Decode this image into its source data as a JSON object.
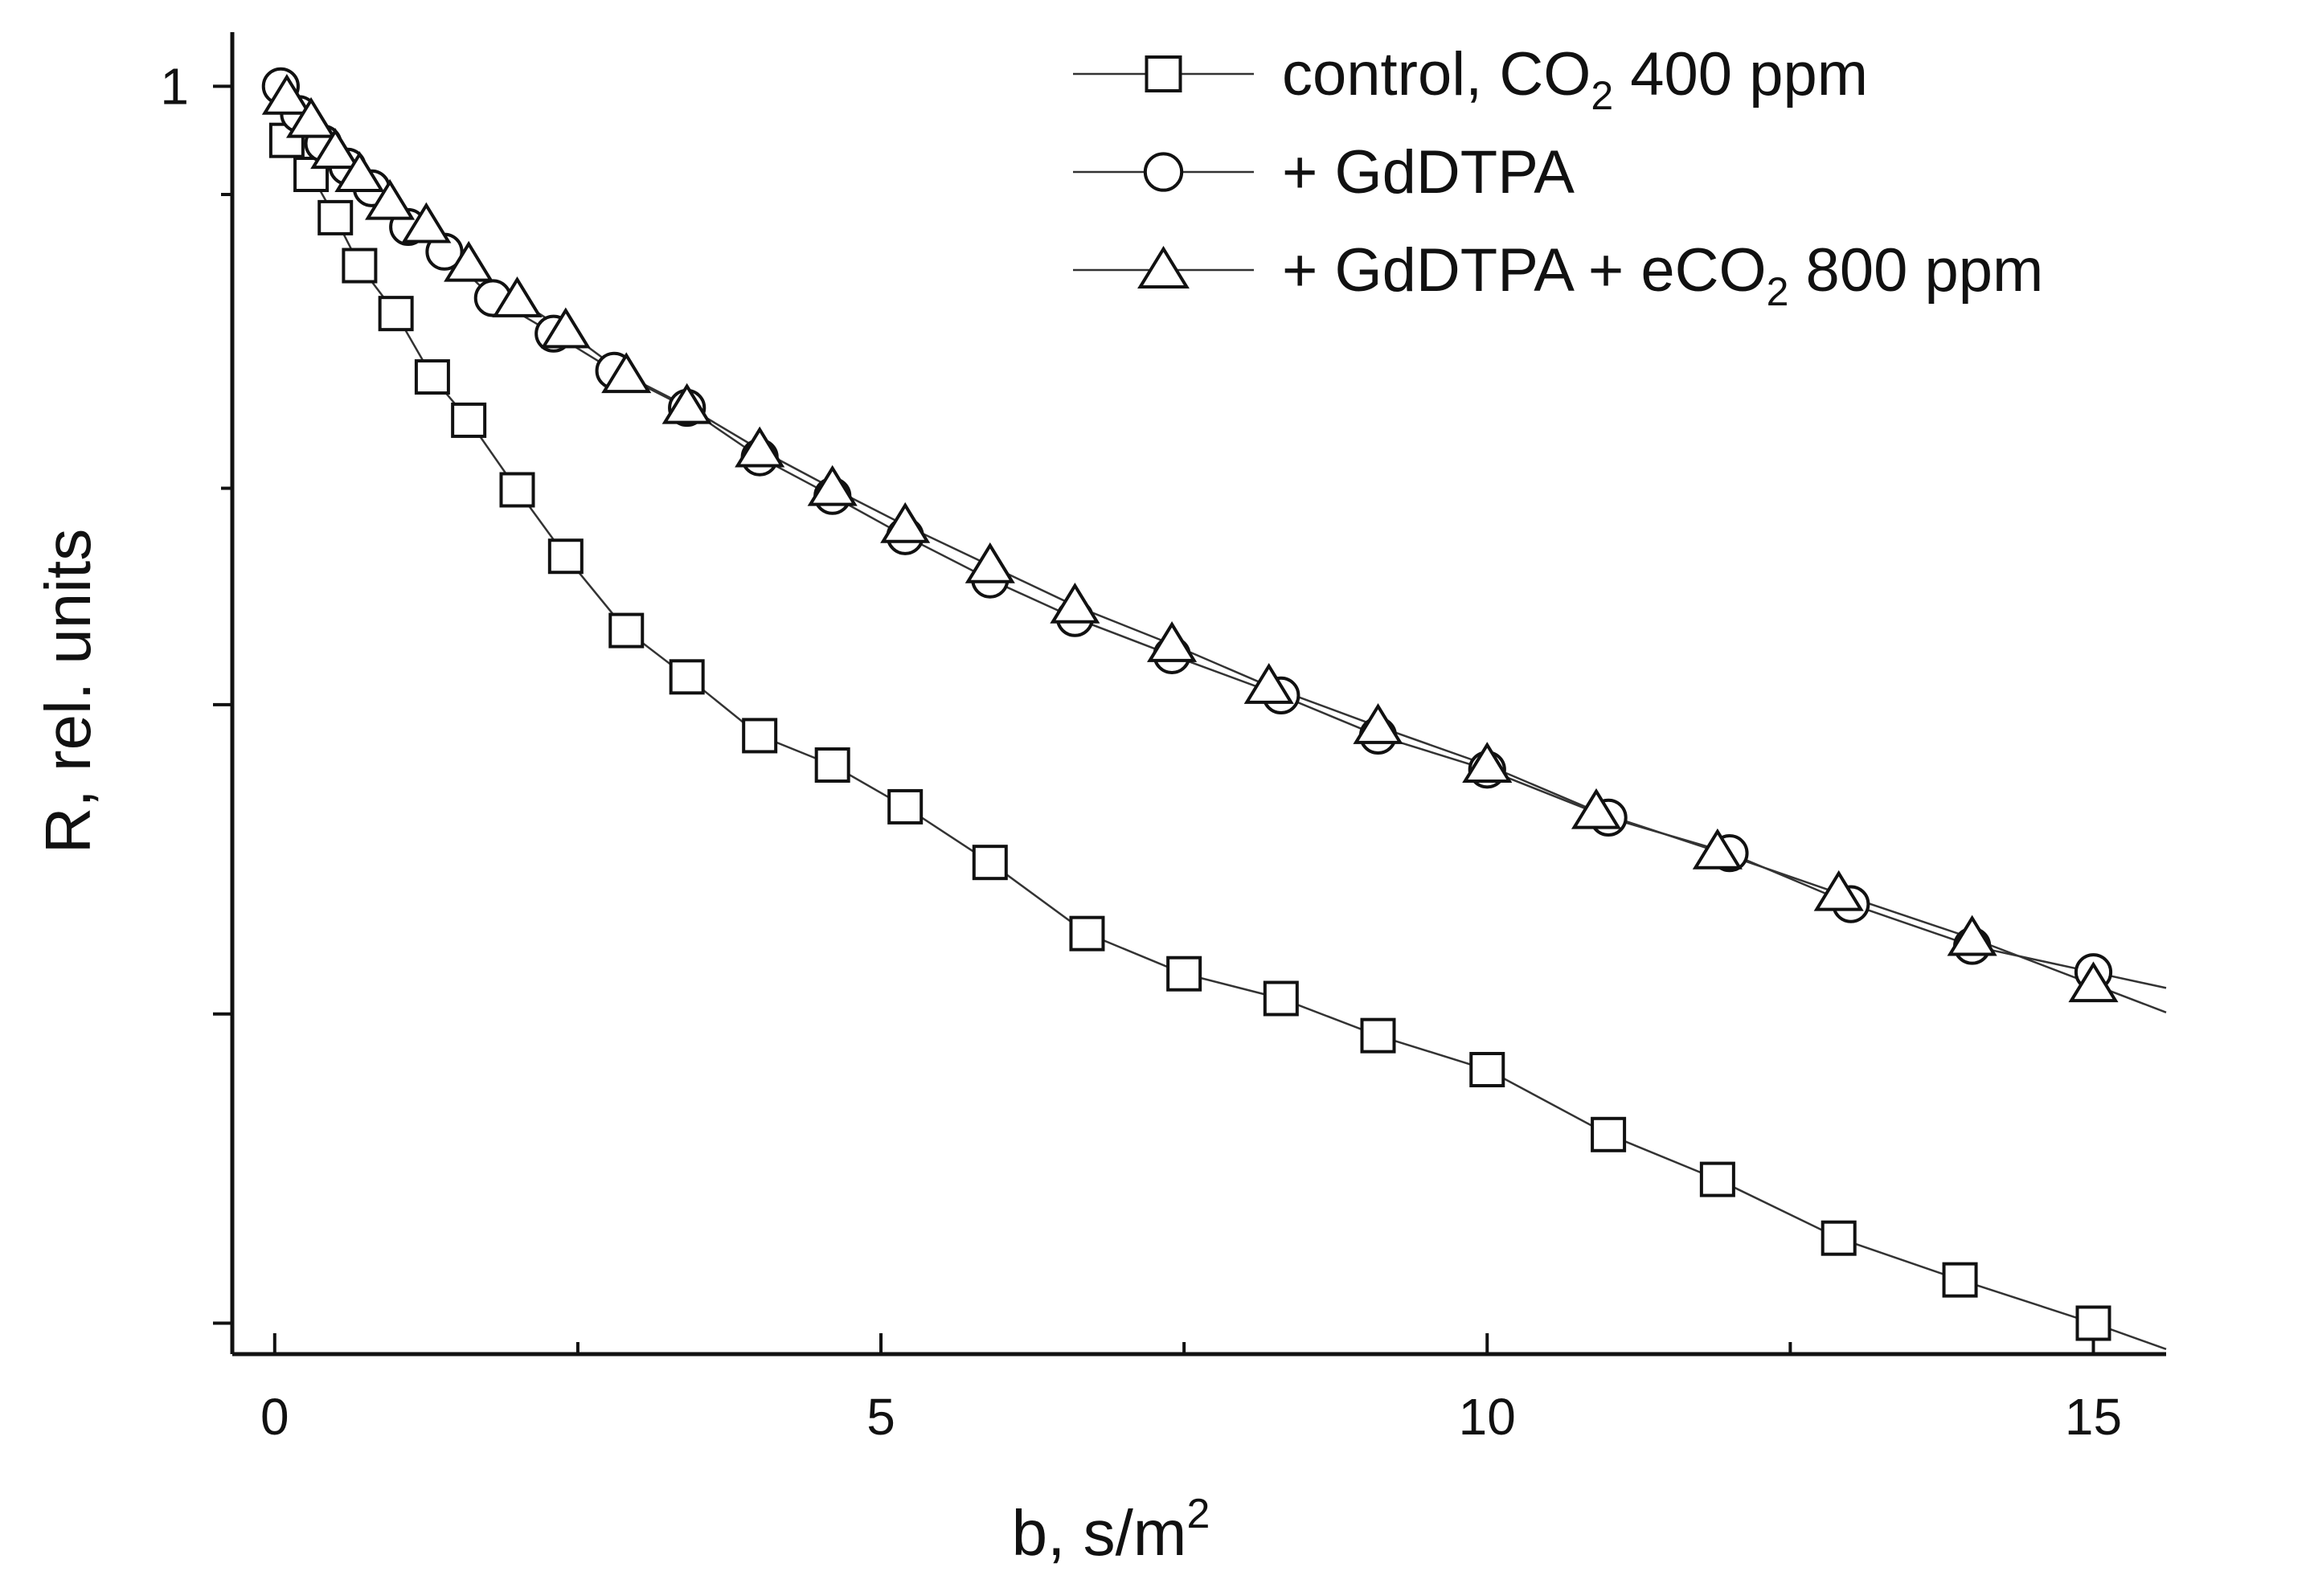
{
  "chart_data": {
    "type": "line",
    "title": "",
    "xlabel": "b, s/m",
    "xlabel_sup": "2",
    "ylabel": "R, rel. units",
    "xlim": [
      -0.35,
      15.6
    ],
    "ylim": [
      0.18,
      1.035
    ],
    "xticks": [
      0,
      5,
      10,
      15
    ],
    "xtick_labels": [
      "0",
      "5",
      "10",
      "15"
    ],
    "yticks": [
      1
    ],
    "ytick_labels": [
      "1"
    ],
    "legend_position": "top-right",
    "series": [
      {
        "name": "control, CO2 400 ppm",
        "label_parts": [
          "control, CO",
          "2",
          " 400 ppm"
        ],
        "marker": "square",
        "x": [
          0.1,
          0.3,
          0.5,
          0.7,
          1.0,
          1.3,
          1.6,
          2.0,
          2.4,
          2.9,
          3.4,
          4.0,
          4.6,
          5.2,
          5.9,
          6.7,
          7.5,
          8.3,
          9.1,
          10.0,
          11.0,
          11.9,
          12.9,
          13.9,
          15.0
        ],
        "y": [
          0.965,
          0.943,
          0.915,
          0.884,
          0.853,
          0.812,
          0.784,
          0.739,
          0.696,
          0.648,
          0.618,
          0.58,
          0.561,
          0.534,
          0.498,
          0.452,
          0.426,
          0.41,
          0.386,
          0.364,
          0.322,
          0.293,
          0.255,
          0.228,
          0.2
        ]
      },
      {
        "name": "+ GdDTPA",
        "label_parts": [
          "+ GdDTPA",
          "",
          ""
        ],
        "marker": "circle",
        "x": [
          0.05,
          0.2,
          0.4,
          0.6,
          0.8,
          1.1,
          1.4,
          1.8,
          2.3,
          2.8,
          3.4,
          4.0,
          4.6,
          5.2,
          5.9,
          6.6,
          7.4,
          8.3,
          9.1,
          10.0,
          11.0,
          12.0,
          13.0,
          14.0,
          15.0
        ],
        "y": [
          1.0,
          0.982,
          0.963,
          0.948,
          0.934,
          0.909,
          0.893,
          0.863,
          0.84,
          0.816,
          0.792,
          0.76,
          0.735,
          0.709,
          0.681,
          0.656,
          0.632,
          0.606,
          0.58,
          0.558,
          0.527,
          0.504,
          0.471,
          0.444,
          0.427
        ]
      },
      {
        "name": "+ GdDTPA + eCO2 800 ppm",
        "label_parts": [
          "+ GdDTPA + eCO",
          "2",
          " 800 ppm"
        ],
        "marker": "triangle",
        "x": [
          0.1,
          0.3,
          0.5,
          0.7,
          0.95,
          1.25,
          1.6,
          2.0,
          2.4,
          2.9,
          3.4,
          4.0,
          4.6,
          5.2,
          5.9,
          6.6,
          7.4,
          8.2,
          9.1,
          10.0,
          10.9,
          11.9,
          12.9,
          14.0,
          15.0
        ],
        "y": [
          0.993,
          0.978,
          0.958,
          0.943,
          0.925,
          0.91,
          0.885,
          0.862,
          0.842,
          0.813,
          0.793,
          0.765,
          0.74,
          0.716,
          0.69,
          0.664,
          0.639,
          0.612,
          0.586,
          0.561,
          0.531,
          0.505,
          0.478,
          0.449,
          0.419
        ]
      }
    ]
  }
}
